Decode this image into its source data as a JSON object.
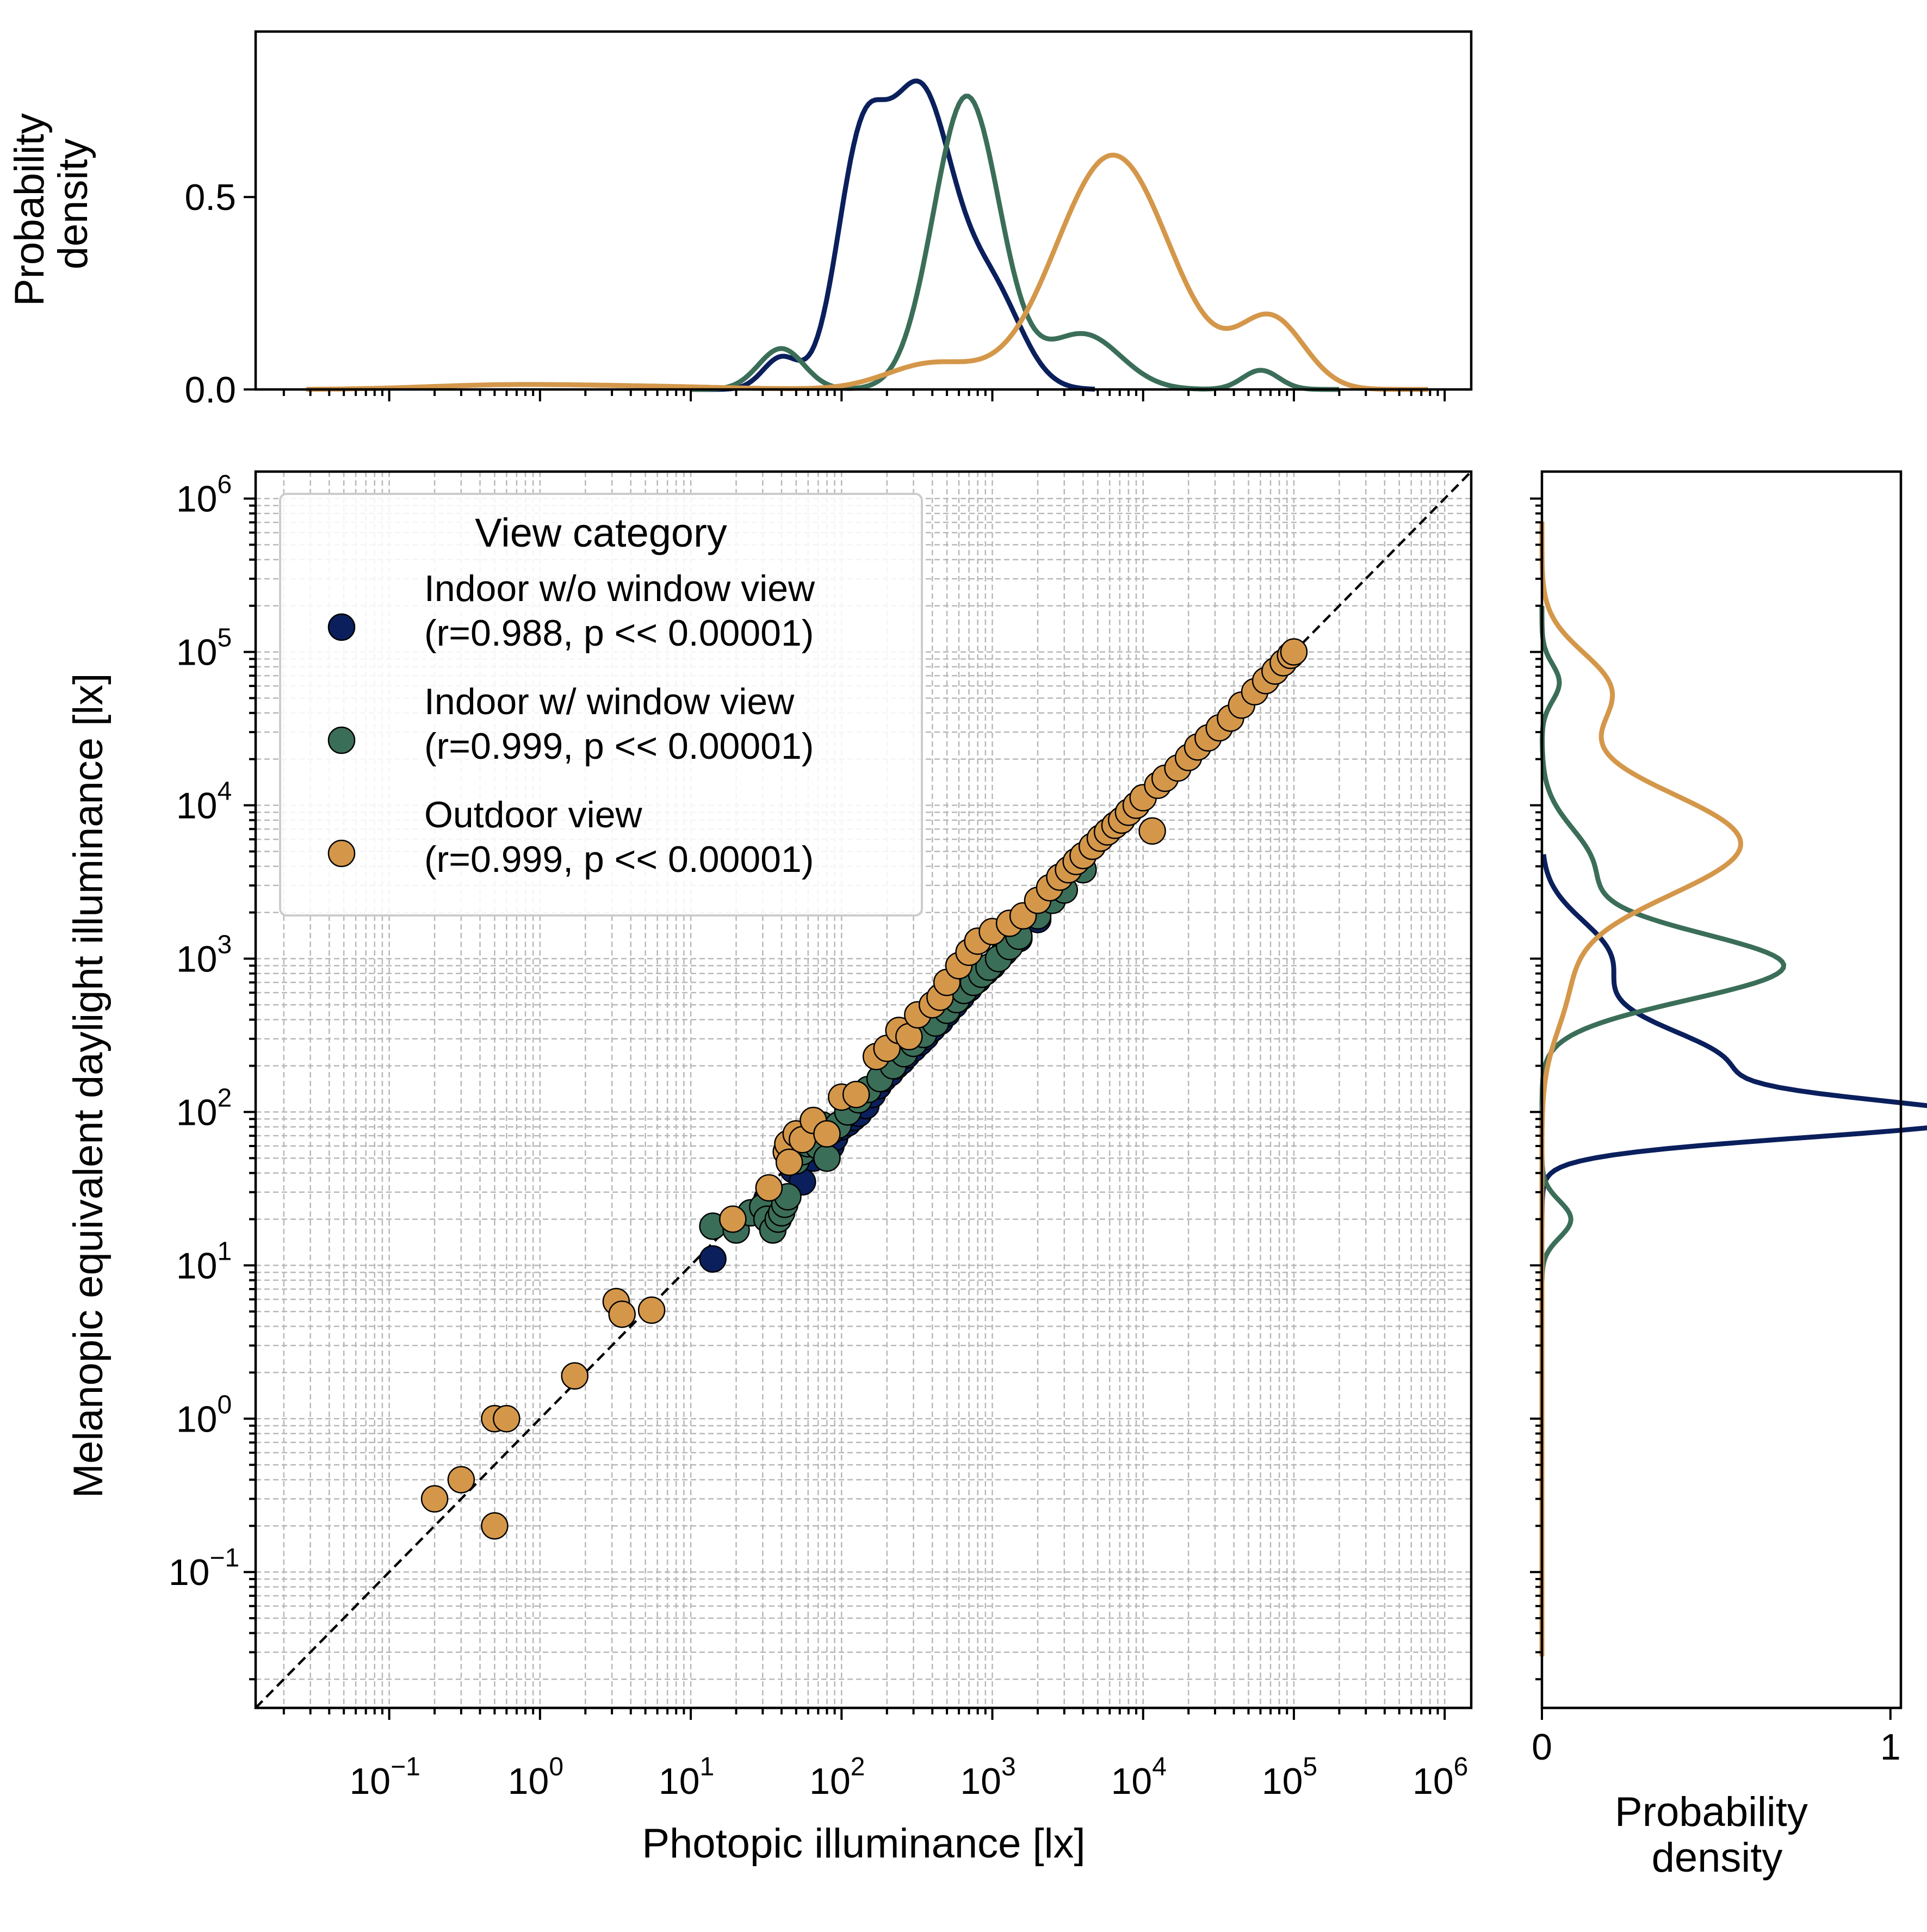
{
  "chart_data": {
    "type": "scatter",
    "x_scale": "log",
    "y_scale": "log",
    "xlabel": "Photopic illuminance [lx]",
    "ylabel": "Melanopic equivalent daylight illuminance [lx]",
    "xlim": [
      0.013,
      1500000
    ],
    "ylim": [
      0.013,
      1500000
    ],
    "xticks": [
      {
        "base": "10",
        "exp": "−1",
        "value": 0.1
      },
      {
        "base": "10",
        "exp": "0",
        "value": 1
      },
      {
        "base": "10",
        "exp": "1",
        "value": 10
      },
      {
        "base": "10",
        "exp": "2",
        "value": 100
      },
      {
        "base": "10",
        "exp": "3",
        "value": 1000
      },
      {
        "base": "10",
        "exp": "4",
        "value": 10000
      },
      {
        "base": "10",
        "exp": "5",
        "value": 100000
      },
      {
        "base": "10",
        "exp": "6",
        "value": 1000000
      }
    ],
    "yticks": [
      {
        "base": "10",
        "exp": "−1",
        "value": 0.1
      },
      {
        "base": "10",
        "exp": "0",
        "value": 1
      },
      {
        "base": "10",
        "exp": "1",
        "value": 10
      },
      {
        "base": "10",
        "exp": "2",
        "value": 100
      },
      {
        "base": "10",
        "exp": "3",
        "value": 1000
      },
      {
        "base": "10",
        "exp": "4",
        "value": 10000
      },
      {
        "base": "10",
        "exp": "5",
        "value": 100000
      },
      {
        "base": "10",
        "exp": "6",
        "value": 1000000
      }
    ],
    "grid": "major and minor, dashed",
    "reference_line": "y = x (dashed black)",
    "legend": {
      "title": "View category",
      "placement": "upper-left"
    },
    "series": [
      {
        "name": "Indoor w/o window view",
        "stats": "(r=0.988, p << 0.00001)",
        "color": "#0a1f5c",
        "points": [
          [
            14,
            11
          ],
          [
            32,
            27
          ],
          [
            48,
            42
          ],
          [
            55,
            35
          ],
          [
            65,
            50
          ],
          [
            75,
            55
          ],
          [
            85,
            60
          ],
          [
            90,
            68
          ],
          [
            100,
            80
          ],
          [
            110,
            85
          ],
          [
            120,
            92
          ],
          [
            130,
            98
          ],
          [
            145,
            110
          ],
          [
            160,
            130
          ],
          [
            175,
            148
          ],
          [
            190,
            165
          ],
          [
            210,
            180
          ],
          [
            230,
            200
          ],
          [
            250,
            215
          ],
          [
            270,
            235
          ],
          [
            300,
            260
          ],
          [
            330,
            285
          ],
          [
            360,
            310
          ],
          [
            400,
            350
          ],
          [
            450,
            390
          ],
          [
            500,
            440
          ],
          [
            560,
            500
          ],
          [
            620,
            560
          ],
          [
            700,
            640
          ],
          [
            800,
            730
          ],
          [
            900,
            820
          ],
          [
            1000,
            900
          ],
          [
            1200,
            1100
          ],
          [
            1500,
            1350
          ],
          [
            2000,
            1800
          ]
        ]
      },
      {
        "name": "Indoor w/ window view",
        "stats": "(r=0.999, p << 0.00001)",
        "color": "#3b6e58",
        "points": [
          [
            14,
            18
          ],
          [
            20,
            17
          ],
          [
            25,
            22
          ],
          [
            30,
            24
          ],
          [
            32,
            20
          ],
          [
            35,
            17
          ],
          [
            38,
            20
          ],
          [
            40,
            22
          ],
          [
            42,
            25
          ],
          [
            44,
            28
          ],
          [
            50,
            48
          ],
          [
            55,
            55
          ],
          [
            60,
            62
          ],
          [
            65,
            70
          ],
          [
            70,
            60
          ],
          [
            75,
            82
          ],
          [
            80,
            50
          ],
          [
            85,
            75
          ],
          [
            95,
            82
          ],
          [
            110,
            100
          ],
          [
            130,
            120
          ],
          [
            150,
            140
          ],
          [
            180,
            165
          ],
          [
            220,
            200
          ],
          [
            260,
            240
          ],
          [
            300,
            280
          ],
          [
            350,
            320
          ],
          [
            420,
            380
          ],
          [
            500,
            460
          ],
          [
            580,
            540
          ],
          [
            650,
            620
          ],
          [
            750,
            700
          ],
          [
            850,
            790
          ],
          [
            950,
            880
          ],
          [
            1100,
            1000
          ],
          [
            1300,
            1200
          ],
          [
            1500,
            1400
          ],
          [
            2000,
            1900
          ],
          [
            2500,
            2400
          ],
          [
            3000,
            2800
          ],
          [
            4000,
            3800
          ]
        ]
      },
      {
        "name": "Outdoor view",
        "stats": "(r=0.999, p << 0.00001)",
        "color": "#d4974a",
        "points": [
          [
            0.2,
            0.3
          ],
          [
            0.3,
            0.4
          ],
          [
            0.5,
            0.2
          ],
          [
            0.5,
            1.0
          ],
          [
            0.6,
            1.0
          ],
          [
            1.7,
            1.9
          ],
          [
            3.2,
            5.8
          ],
          [
            3.5,
            4.8
          ],
          [
            5.5,
            5.1
          ],
          [
            19,
            20
          ],
          [
            33,
            32
          ],
          [
            43,
            55
          ],
          [
            44,
            62
          ],
          [
            45,
            47
          ],
          [
            50,
            72
          ],
          [
            55,
            66
          ],
          [
            65,
            88
          ],
          [
            80,
            72
          ],
          [
            100,
            125
          ],
          [
            125,
            130
          ],
          [
            170,
            230
          ],
          [
            200,
            260
          ],
          [
            240,
            340
          ],
          [
            280,
            310
          ],
          [
            320,
            430
          ],
          [
            400,
            500
          ],
          [
            450,
            560
          ],
          [
            500,
            700
          ],
          [
            600,
            900
          ],
          [
            700,
            1100
          ],
          [
            800,
            1300
          ],
          [
            1000,
            1500
          ],
          [
            1300,
            1700
          ],
          [
            1600,
            1900
          ],
          [
            2000,
            2400
          ],
          [
            2400,
            2900
          ],
          [
            2800,
            3400
          ],
          [
            3200,
            3800
          ],
          [
            3600,
            4300
          ],
          [
            4000,
            4700
          ],
          [
            4600,
            5400
          ],
          [
            5200,
            6100
          ],
          [
            5800,
            6700
          ],
          [
            6500,
            7400
          ],
          [
            7200,
            8000
          ],
          [
            8000,
            9000
          ],
          [
            9000,
            10000
          ],
          [
            10000,
            11200
          ],
          [
            11500,
            6800
          ],
          [
            12500,
            13500
          ],
          [
            14000,
            15000
          ],
          [
            17000,
            17500
          ],
          [
            20000,
            20500
          ],
          [
            23000,
            24000
          ],
          [
            27000,
            27500
          ],
          [
            32000,
            32000
          ],
          [
            38000,
            37000
          ],
          [
            45000,
            45000
          ],
          [
            55000,
            55000
          ],
          [
            65000,
            65000
          ],
          [
            75000,
            75000
          ],
          [
            85000,
            85000
          ],
          [
            95000,
            95000
          ],
          [
            100000,
            100000
          ]
        ]
      }
    ],
    "top_marginal": {
      "ylabel": "Probability\ndensity",
      "yticks": [
        "0.0",
        "0.5"
      ],
      "ylim": [
        0,
        0.93
      ],
      "curves": [
        {
          "series": "Indoor w/o window view",
          "peaks": [
            {
              "mu_log10": 2.12,
              "sigma": 0.16,
              "weight": 0.22
            },
            {
              "mu_log10": 2.52,
              "sigma": 0.22,
              "weight": 0.42
            },
            {
              "mu_log10": 3.0,
              "sigma": 0.2,
              "weight": 0.12
            },
            {
              "mu_log10": 1.6,
              "sigma": 0.12,
              "weight": 0.025
            }
          ]
        },
        {
          "series": "Indoor w/ window view",
          "peaks": [
            {
              "mu_log10": 2.83,
              "sigma": 0.22,
              "weight": 0.42
            },
            {
              "mu_log10": 3.6,
              "sigma": 0.25,
              "weight": 0.09
            },
            {
              "mu_log10": 1.6,
              "sigma": 0.15,
              "weight": 0.04
            },
            {
              "mu_log10": 4.78,
              "sigma": 0.12,
              "weight": 0.015
            }
          ]
        },
        {
          "series": "Outdoor view",
          "peaks": [
            {
              "mu_log10": 3.8,
              "sigma": 0.38,
              "weight": 0.58
            },
            {
              "mu_log10": 4.85,
              "sigma": 0.22,
              "weight": 0.1
            },
            {
              "mu_log10": 2.6,
              "sigma": 0.3,
              "weight": 0.05
            },
            {
              "mu_log10": -0.3,
              "sigma": 0.5,
              "weight": 0.012
            },
            {
              "mu_log10": 0.6,
              "sigma": 0.6,
              "weight": 0.012
            }
          ]
        }
      ]
    },
    "right_marginal": {
      "xlabel": "Probability\ndensity",
      "xticks": [
        "0",
        "1"
      ],
      "xlim": [
        0,
        1.03
      ],
      "curves": [
        {
          "series": "Indoor w/o window view",
          "peaks": [
            {
              "mu_log10": 1.95,
              "sigma": 0.12,
              "weight": 0.32
            },
            {
              "mu_log10": 2.3,
              "sigma": 0.25,
              "weight": 0.33
            },
            {
              "mu_log10": 3.0,
              "sigma": 0.25,
              "weight": 0.12
            }
          ]
        },
        {
          "series": "Indoor w/ window view",
          "peaks": [
            {
              "mu_log10": 2.95,
              "sigma": 0.22,
              "weight": 0.38
            },
            {
              "mu_log10": 3.6,
              "sigma": 0.25,
              "weight": 0.09
            },
            {
              "mu_log10": 1.3,
              "sigma": 0.12,
              "weight": 0.025
            },
            {
              "mu_log10": 4.8,
              "sigma": 0.12,
              "weight": 0.015
            }
          ]
        },
        {
          "series": "Outdoor view",
          "peaks": [
            {
              "mu_log10": 3.75,
              "sigma": 0.35,
              "weight": 0.5
            },
            {
              "mu_log10": 4.75,
              "sigma": 0.25,
              "weight": 0.12
            },
            {
              "mu_log10": 2.8,
              "sigma": 0.3,
              "weight": 0.05
            }
          ]
        }
      ]
    }
  }
}
